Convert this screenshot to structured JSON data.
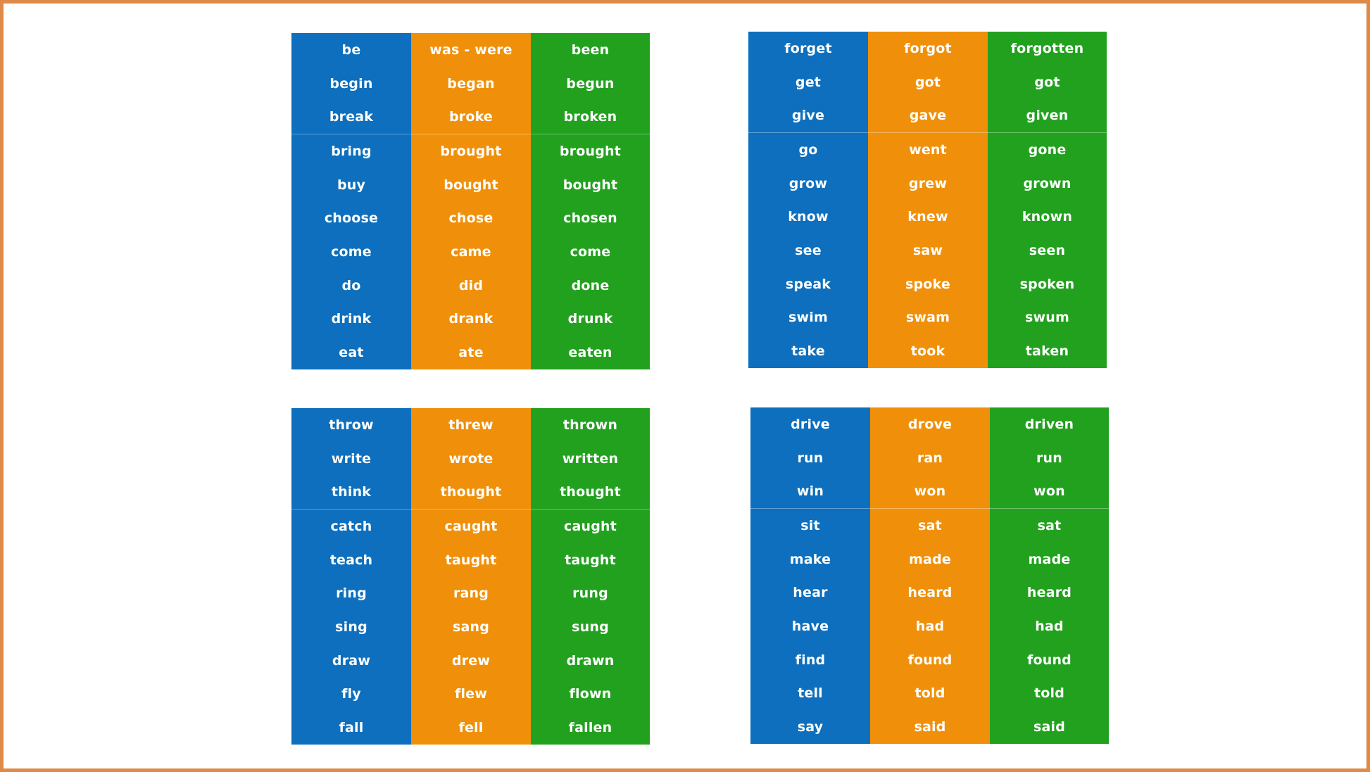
{
  "colors": {
    "base": "#0d6fbd",
    "past": "#f0900a",
    "participle": "#22a11f",
    "frame_border": "#e08a4a"
  },
  "tables": [
    {
      "base": [
        "be",
        "begin",
        "break",
        "bring",
        "buy",
        "choose",
        "come",
        "do",
        "drink",
        "eat"
      ],
      "past": [
        "was - were",
        "began",
        "broke",
        "brought",
        "bought",
        "chose",
        "came",
        "did",
        "drank",
        "ate"
      ],
      "participle": [
        "been",
        "begun",
        "broken",
        "brought",
        "bought",
        "chosen",
        "come",
        "done",
        "drunk",
        "eaten"
      ]
    },
    {
      "base": [
        "forget",
        "get",
        "give",
        "go",
        "grow",
        "know",
        "see",
        "speak",
        "swim",
        "take"
      ],
      "past": [
        "forgot",
        "got",
        "gave",
        "went",
        "grew",
        "knew",
        "saw",
        "spoke",
        "swam",
        "took"
      ],
      "participle": [
        "forgotten",
        "got",
        "given",
        "gone",
        "grown",
        "known",
        "seen",
        "spoken",
        "swum",
        "taken"
      ]
    },
    {
      "base": [
        "throw",
        "write",
        "think",
        "catch",
        "teach",
        "ring",
        "sing",
        "draw",
        "fly",
        "fall"
      ],
      "past": [
        "threw",
        "wrote",
        "thought",
        "caught",
        "taught",
        "rang",
        "sang",
        "drew",
        "flew",
        "fell"
      ],
      "participle": [
        "thrown",
        "written",
        "thought",
        "caught",
        "taught",
        "rung",
        "sung",
        "drawn",
        "flown",
        "fallen"
      ]
    },
    {
      "base": [
        "drive",
        "run",
        "win",
        "sit",
        "make",
        "hear",
        "have",
        "find",
        "tell",
        "say"
      ],
      "past": [
        "drove",
        "ran",
        "won",
        "sat",
        "made",
        "heard",
        "had",
        "found",
        "told",
        "said"
      ],
      "participle": [
        "driven",
        "run",
        "won",
        "sat",
        "made",
        "heard",
        "had",
        "found",
        "told",
        "said"
      ]
    }
  ]
}
